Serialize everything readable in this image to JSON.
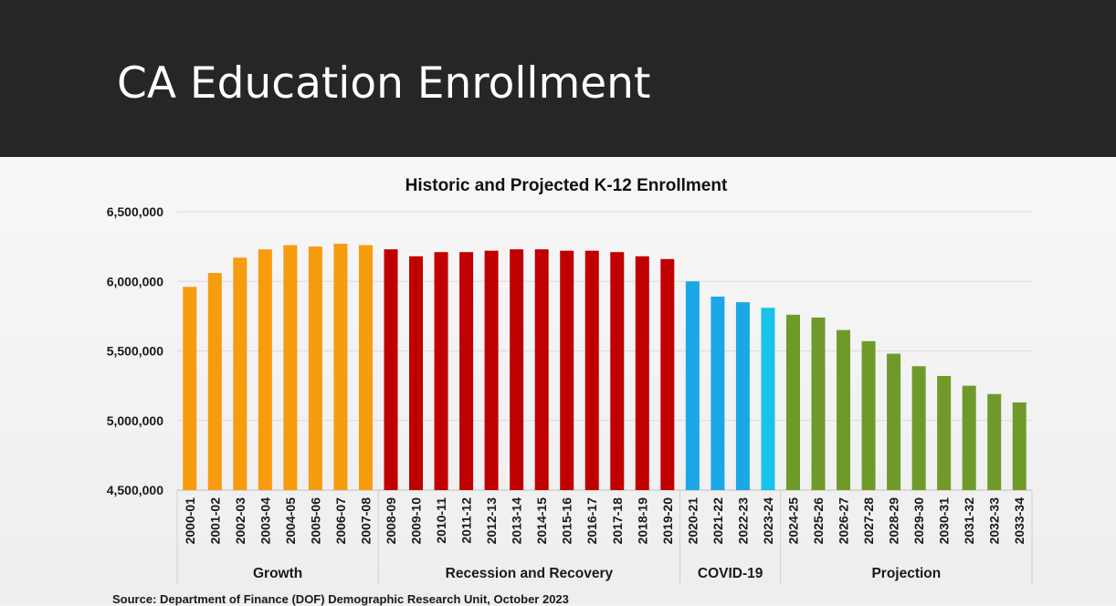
{
  "slide": {
    "title": "CA Education Enrollment"
  },
  "source_note": "Source: Department of Finance (DOF) Demographic Research Unit, October 2023",
  "colors": {
    "growth": "#f79b0f",
    "recession": "#c00000",
    "covid": "#1aa7e8",
    "covid_alt": "#19c2ea",
    "projection": "#6f9a2a"
  },
  "chart_data": {
    "type": "bar",
    "title": "Historic and Projected K-12 Enrollment",
    "xlabel": "",
    "ylabel": "",
    "ylim": [
      4500000,
      6500000
    ],
    "yticks": [
      "4,500,000",
      "5,000,000",
      "5,500,000",
      "6,000,000",
      "6,500,000"
    ],
    "ytick_values": [
      4500000,
      5000000,
      5500000,
      6000000,
      6500000
    ],
    "grid": true,
    "categories": [
      "2000-01",
      "2001-02",
      "2002-03",
      "2003-04",
      "2004-05",
      "2005-06",
      "2006-07",
      "2007-08",
      "2008-09",
      "2009-10",
      "2010-11",
      "2011-12",
      "2012-13",
      "2013-14",
      "2014-15",
      "2015-16",
      "2016-17",
      "2017-18",
      "2018-19",
      "2019-20",
      "2020-21",
      "2021-22",
      "2022-23",
      "2023-24",
      "2024-25",
      "2025-26",
      "2026-27",
      "2027-28",
      "2028-29",
      "2029-30",
      "2030-31",
      "2031-32",
      "2032-33",
      "2033-34"
    ],
    "values": [
      5960000,
      6060000,
      6170000,
      6230000,
      6260000,
      6250000,
      6270000,
      6260000,
      6230000,
      6180000,
      6210000,
      6210000,
      6220000,
      6230000,
      6230000,
      6220000,
      6220000,
      6210000,
      6180000,
      6160000,
      6000000,
      5890000,
      5850000,
      5810000,
      5760000,
      5740000,
      5650000,
      5570000,
      5480000,
      5390000,
      5320000,
      5250000,
      5190000,
      5130000
    ],
    "groups": [
      {
        "label": "Growth",
        "start": 0,
        "end": 7,
        "color_key": "growth"
      },
      {
        "label": "Recession and Recovery",
        "start": 8,
        "end": 19,
        "color_key": "recession"
      },
      {
        "label": "COVID-19",
        "start": 20,
        "end": 23,
        "color_key": "covid"
      },
      {
        "label": "Projection",
        "start": 24,
        "end": 33,
        "color_key": "projection"
      }
    ]
  }
}
